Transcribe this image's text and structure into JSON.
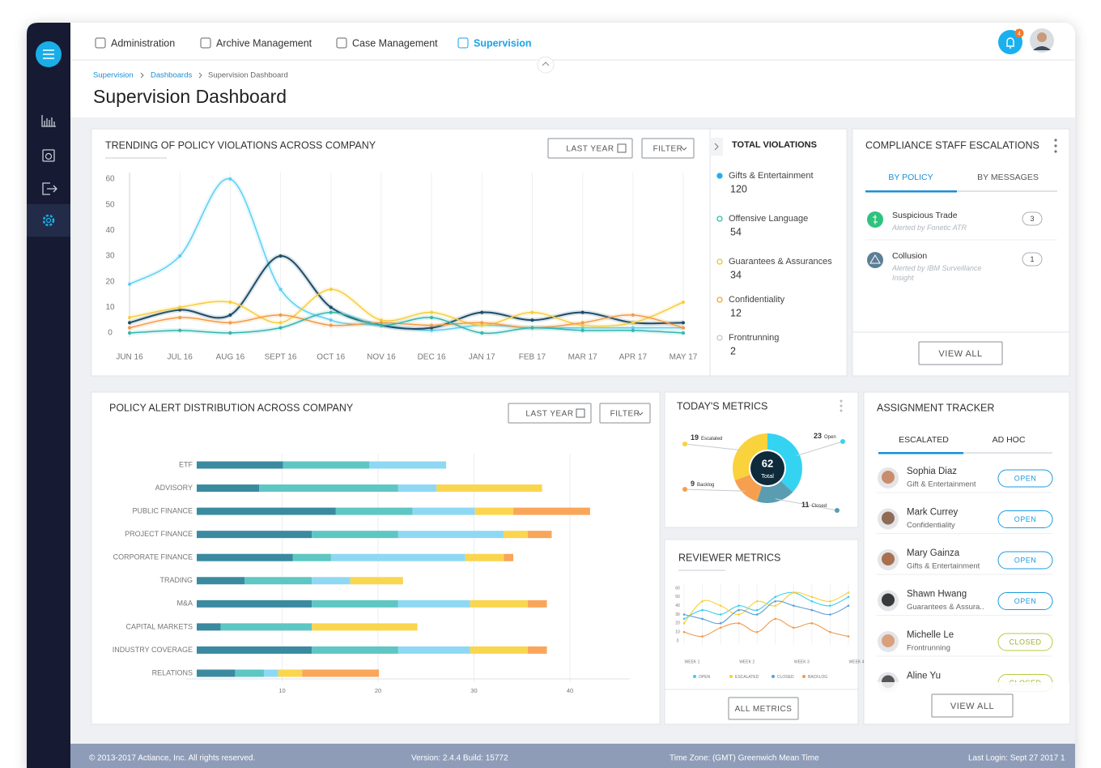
{
  "nav": {
    "items": [
      "Administration",
      "Archive Management",
      "Case Management",
      "Supervision"
    ],
    "notifications": "4"
  },
  "breadcrumb": [
    "Supervision",
    "Dashboards",
    "Supervision Dashboard"
  ],
  "title": "Supervision Dashboard",
  "chart_data": [
    {
      "type": "line",
      "title": "TRENDING OF POLICY VIOLATIONS ACROSS COMPANY",
      "controls": [
        "LAST YEAR",
        "FILTER"
      ],
      "categories": [
        "JUN 16",
        "JUL 16",
        "AUG 16",
        "SEPT 16",
        "OCT 16",
        "NOV 16",
        "DEC 16",
        "JAN 17",
        "FEB 17",
        "MAR 17",
        "APR 17",
        "MAY 17"
      ],
      "series": [
        {
          "color": "#5ccff2",
          "values": [
            19,
            30,
            60,
            17,
            5,
            3,
            1,
            3,
            2,
            2,
            2,
            2
          ]
        },
        {
          "color": "#1c4d68",
          "values": [
            4,
            9,
            7,
            30,
            10,
            3,
            2,
            8,
            5,
            8,
            4,
            4
          ]
        },
        {
          "color": "#f7cd3c",
          "values": [
            6,
            10,
            12,
            4,
            17,
            5,
            8,
            3,
            8,
            3,
            4,
            12
          ]
        },
        {
          "color": "#f49a45",
          "values": [
            2,
            6,
            4,
            7,
            3,
            4,
            3,
            4,
            2,
            4,
            7,
            2
          ]
        },
        {
          "color": "#34b5ae",
          "values": [
            0,
            1,
            0,
            2,
            8,
            3,
            6,
            0,
            2,
            1,
            1,
            0
          ]
        }
      ],
      "ylim": [
        0,
        60
      ],
      "yticks": [
        0,
        10,
        20,
        30,
        40,
        50,
        60
      ],
      "grid": true
    },
    {
      "type": "bar",
      "orientation": "horizontal",
      "stacked": true,
      "title": "POLICY ALERT DISTRIBUTION ACROSS COMPANY",
      "controls": [
        "LAST YEAR",
        "FILTER"
      ],
      "categories": [
        "ETF",
        "ADVISORY",
        "PUBLIC FINANCE",
        "PROJECT FINANCE",
        "CORPORATE FINANCE",
        "TRADING",
        "M&A",
        "CAPITAL MARKETS",
        "INDUSTRY COVERAGE",
        "RELATIONS"
      ],
      "series": [
        {
          "color": "#3a8aa0",
          "values": [
            9,
            6.5,
            14.5,
            12,
            10,
            5,
            12,
            2.5,
            12,
            4
          ]
        },
        {
          "color": "#5ec6c3",
          "values": [
            9,
            14.5,
            8,
            9,
            4,
            7,
            9,
            9.5,
            9,
            3
          ]
        },
        {
          "color": "#8fd8f3",
          "values": [
            8,
            4,
            6.5,
            11,
            14,
            4,
            7.5,
            0,
            7.5,
            1.5
          ]
        },
        {
          "color": "#fad54e",
          "values": [
            0,
            11,
            4,
            2.5,
            4,
            5.5,
            6,
            11,
            6,
            2.5
          ]
        },
        {
          "color": "#f9a65a",
          "values": [
            0,
            0,
            8,
            2.5,
            1,
            0,
            2,
            0,
            2,
            8
          ]
        }
      ],
      "xlim": [
        0,
        47
      ],
      "xticks": [
        10,
        20,
        30,
        40
      ],
      "grid": true
    },
    {
      "type": "pie",
      "donut": true,
      "title": "TODAY'S METRICS",
      "categories": [
        "Open",
        "Closed",
        "Backlog",
        "Escalated"
      ],
      "values": [
        23,
        11,
        9,
        19
      ],
      "colors": [
        "#35d3f2",
        "#5b9db0",
        "#f6a04f",
        "#f9d23c"
      ],
      "total": 62,
      "total_label": "Total"
    },
    {
      "type": "line",
      "title": "REVIEWER  METRICS",
      "button": "ALL METRICS",
      "categories": [
        "WEEK 1",
        null,
        null,
        "WEEK 2",
        null,
        null,
        "WEEK 3",
        null,
        null,
        "WEEK 4"
      ],
      "series": [
        {
          "name": "OPEN",
          "color": "#35cfee",
          "values": [
            25,
            35,
            30,
            40,
            35,
            50,
            55,
            45,
            40,
            50
          ]
        },
        {
          "name": "ESCALATED",
          "color": "#f8cf3a",
          "values": [
            20,
            45,
            40,
            30,
            45,
            40,
            55,
            50,
            45,
            55
          ]
        },
        {
          "name": "CLOSED",
          "color": "#5b9fd6",
          "values": [
            30,
            25,
            20,
            35,
            30,
            45,
            40,
            35,
            30,
            40
          ]
        },
        {
          "name": "BACKLOG",
          "color": "#f39a4a",
          "values": [
            10,
            5,
            15,
            20,
            10,
            25,
            15,
            20,
            10,
            5
          ]
        }
      ],
      "ylim": [
        0,
        60
      ],
      "yticks": [
        0,
        10,
        20,
        30,
        40,
        50,
        60
      ]
    }
  ],
  "total_violations": {
    "title": "TOTAL VIOLATIONS",
    "items": [
      {
        "name": "Gifts & Entertainment",
        "value": 120,
        "color": "#1fb1ea"
      },
      {
        "name": "Offensive Language",
        "value": 54,
        "color": "#2fbfa8"
      },
      {
        "name": "Guarantees & Assurances",
        "value": 34,
        "color": "#e3c832"
      },
      {
        "name": "Confidentiality",
        "value": 12,
        "color": "#f4a536"
      },
      {
        "name": "Frontrunning",
        "value": 2,
        "color": "#c4c8cc"
      }
    ]
  },
  "escalations": {
    "title": "COMPLIANCE STAFF ESCALATIONS",
    "tabs": [
      "BY POLICY",
      "BY MESSAGES"
    ],
    "items": [
      {
        "name": "Suspicious Trade",
        "source": "Alerted by Fonetic ATR",
        "count": 3
      },
      {
        "name": "Collusion",
        "source": "Alerted by IBM Surveillance Insight",
        "count": 1
      }
    ],
    "button": "VIEW ALL"
  },
  "assignment": {
    "title": "ASSIGNMENT TRACKER",
    "tabs": [
      "ESCALATED",
      "AD HOC"
    ],
    "items": [
      {
        "name": "Sophia Diaz",
        "policy": "Gift & Entertainment",
        "status": "OPEN"
      },
      {
        "name": "Mark Currey",
        "policy": "Confidentiality",
        "status": "OPEN"
      },
      {
        "name": "Mary Gainza",
        "policy": "Gifts & Entertainment",
        "status": "OPEN"
      },
      {
        "name": "Shawn Hwang",
        "policy": "Guarantees & Assura..",
        "status": "OPEN"
      },
      {
        "name": "Michelle Le",
        "policy": "Frontrunning",
        "status": "CLOSED"
      },
      {
        "name": "Aline Yu",
        "status": "CLOSED"
      }
    ],
    "button": "VIEW ALL"
  },
  "footer": {
    "copyright": "© 2013-2017 Actiance, Inc. All rights reserved.",
    "version": "Version: 2.4.4  Build: 15772",
    "timezone": "Time Zone: (GMT) Greenwich Mean Time",
    "last_login": "Last Login: Sept 27 2017 1"
  }
}
